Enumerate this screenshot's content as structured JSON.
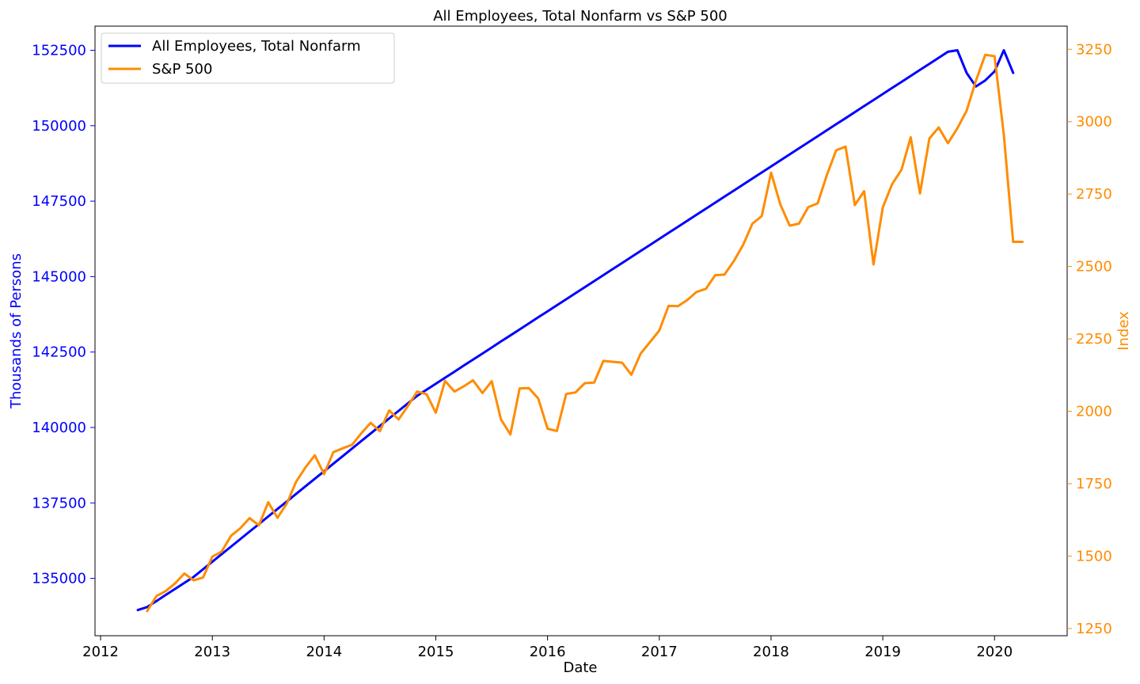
{
  "chart_data": {
    "type": "line",
    "title": "All Employees, Total Nonfarm vs S&P 500",
    "xlabel": "Date",
    "ylabel_left": "Thousands of Persons",
    "ylabel_right": "Index",
    "xlim": [
      2011.95,
      2020.65
    ],
    "ylim_left": [
      133100,
      153300
    ],
    "ylim_right": [
      1225,
      3330
    ],
    "x_ticks": [
      2012,
      2013,
      2014,
      2015,
      2016,
      2017,
      2018,
      2019,
      2020
    ],
    "x_tick_labels": [
      "2012",
      "2013",
      "2014",
      "2015",
      "2016",
      "2017",
      "2018",
      "2019",
      "2020"
    ],
    "y_left_ticks": [
      135000,
      137500,
      140000,
      142500,
      145000,
      147500,
      150000,
      152500
    ],
    "y_left_tick_labels": [
      "135000",
      "137500",
      "140000",
      "142500",
      "145000",
      "147500",
      "150000",
      "152500"
    ],
    "y_right_ticks": [
      1250,
      1500,
      1750,
      2000,
      2250,
      2500,
      2750,
      3000,
      3250
    ],
    "y_right_tick_labels": [
      "1250",
      "1500",
      "1750",
      "2000",
      "2250",
      "2500",
      "2750",
      "3000",
      "3250"
    ],
    "grid": false,
    "legend_position": "top-left",
    "colors": {
      "left_axis": "#0000ff",
      "right_axis": "#ff8c00"
    },
    "series": [
      {
        "name": "All Employees, Total Nonfarm",
        "axis": "left",
        "color": "#0000ff",
        "x": [
          2012.333,
          2012.417,
          2012.5,
          2012.583,
          2012.667,
          2012.75,
          2012.833,
          2012.917,
          2013.0,
          2013.083,
          2013.167,
          2013.25,
          2013.333,
          2013.417,
          2013.5,
          2013.583,
          2013.667,
          2013.75,
          2013.833,
          2013.917,
          2014.0,
          2014.083,
          2014.167,
          2014.25,
          2014.333,
          2014.417,
          2014.5,
          2014.583,
          2014.667,
          2014.75,
          2014.833,
          2014.917,
          2015.0,
          2015.083,
          2015.167,
          2015.25,
          2015.333,
          2015.417,
          2015.5,
          2015.583,
          2015.667,
          2015.75,
          2015.833,
          2015.917,
          2016.0,
          2016.083,
          2016.167,
          2016.25,
          2016.333,
          2016.417,
          2016.5,
          2016.583,
          2016.667,
          2016.75,
          2016.833,
          2016.917,
          2017.0,
          2017.083,
          2017.167,
          2017.25,
          2017.333,
          2017.417,
          2017.5,
          2017.583,
          2017.667,
          2017.75,
          2017.833,
          2017.917,
          2018.0,
          2018.083,
          2018.167,
          2018.25,
          2018.333,
          2018.417,
          2018.5,
          2018.583,
          2018.667,
          2018.75,
          2018.833,
          2018.917,
          2019.0,
          2019.083,
          2019.167,
          2019.25,
          2019.333,
          2019.417,
          2019.5,
          2019.583,
          2019.667,
          2019.75,
          2019.833,
          2019.917,
          2020.0,
          2020.083,
          2020.167
        ],
        "values": [
          133950,
          134050,
          134250,
          134450,
          134650,
          134850,
          135050,
          135300,
          135550,
          135800,
          136050,
          136300,
          136550,
          136800,
          137050,
          137300,
          137550,
          137800,
          138050,
          138300,
          138550,
          138800,
          139050,
          139300,
          139550,
          139800,
          140050,
          140300,
          140550,
          140800,
          141050,
          141250,
          141450,
          141650,
          141850,
          142050,
          142250,
          142450,
          142650,
          142850,
          143050,
          143250,
          143450,
          143650,
          143850,
          144050,
          144250,
          144450,
          144650,
          144850,
          145050,
          145250,
          145450,
          145650,
          145850,
          146050,
          146250,
          146450,
          146650,
          146850,
          147050,
          147250,
          147450,
          147650,
          147850,
          148050,
          148250,
          148450,
          148650,
          148850,
          149050,
          149250,
          149450,
          149650,
          149850,
          150050,
          150250,
          150450,
          150650,
          150850,
          151050,
          151250,
          151450,
          151650,
          151850,
          152050,
          152250,
          152450,
          152500,
          151750,
          151300,
          151500,
          151800,
          152500,
          151750
        ]
      },
      {
        "name": "S&P 500",
        "axis": "right",
        "color": "#ff8c00",
        "x": [
          2012.417,
          2012.5,
          2012.583,
          2012.667,
          2012.75,
          2012.833,
          2012.917,
          2013.0,
          2013.083,
          2013.167,
          2013.25,
          2013.333,
          2013.417,
          2013.5,
          2013.583,
          2013.667,
          2013.75,
          2013.833,
          2013.917,
          2014.0,
          2014.083,
          2014.167,
          2014.25,
          2014.333,
          2014.417,
          2014.5,
          2014.583,
          2014.667,
          2014.75,
          2014.833,
          2014.917,
          2015.0,
          2015.083,
          2015.167,
          2015.25,
          2015.333,
          2015.417,
          2015.5,
          2015.583,
          2015.667,
          2015.75,
          2015.833,
          2015.917,
          2016.0,
          2016.083,
          2016.167,
          2016.25,
          2016.333,
          2016.417,
          2016.5,
          2016.583,
          2016.667,
          2016.75,
          2016.833,
          2016.917,
          2017.0,
          2017.083,
          2017.167,
          2017.25,
          2017.333,
          2017.417,
          2017.5,
          2017.583,
          2017.667,
          2017.75,
          2017.833,
          2017.917,
          2018.0,
          2018.083,
          2018.167,
          2018.25,
          2018.333,
          2018.417,
          2018.5,
          2018.583,
          2018.667,
          2018.75,
          2018.833,
          2018.917,
          2019.0,
          2019.083,
          2019.167,
          2019.25,
          2019.333,
          2019.417,
          2019.5,
          2019.583,
          2019.667,
          2019.75,
          2019.833,
          2019.917,
          2020.0,
          2020.083,
          2020.167,
          2020.25
        ],
        "values": [
          1310,
          1362,
          1379,
          1406,
          1440,
          1416,
          1426,
          1498,
          1515,
          1570,
          1596,
          1631,
          1606,
          1686,
          1632,
          1682,
          1757,
          1806,
          1848,
          1783,
          1859,
          1872,
          1884,
          1924,
          1960,
          1931,
          2003,
          1972,
          2018,
          2068,
          2059,
          1995,
          2105,
          2068,
          2086,
          2107,
          2063,
          2104,
          1972,
          1920,
          2079,
          2080,
          2044,
          1940,
          1932,
          2060,
          2065,
          2097,
          2099,
          2174,
          2171,
          2168,
          2126,
          2199,
          2239,
          2279,
          2364,
          2363,
          2384,
          2412,
          2423,
          2470,
          2472,
          2519,
          2575,
          2648,
          2674,
          2824,
          2714,
          2641,
          2648,
          2705,
          2718,
          2816,
          2901,
          2914,
          2712,
          2760,
          2507,
          2704,
          2784,
          2834,
          2946,
          2752,
          2942,
          2980,
          2926,
          2977,
          3038,
          3141,
          3231,
          3226,
          2955,
          2585,
          2585
        ]
      }
    ]
  }
}
